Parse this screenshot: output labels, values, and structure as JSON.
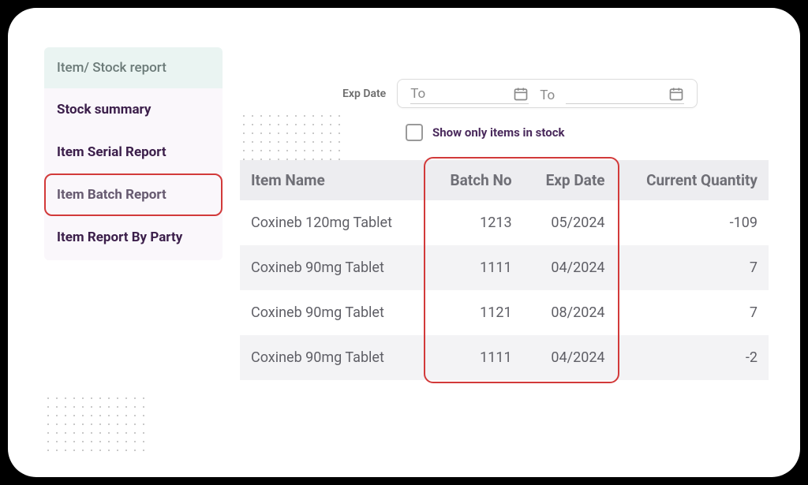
{
  "sidebar": {
    "header": "Item/ Stock report",
    "items": [
      {
        "label": "Stock summary",
        "active": false
      },
      {
        "label": "Item Serial Report",
        "active": false
      },
      {
        "label": "Item Batch Report",
        "active": true
      },
      {
        "label": "Item Report By Party",
        "active": false
      }
    ]
  },
  "filters": {
    "exp_date_label": "Exp Date",
    "date_from_placeholder": "To",
    "date_separator": "To",
    "date_to_placeholder": "",
    "checkbox_label": "Show only items in stock",
    "checkbox_checked": false
  },
  "table": {
    "columns": [
      "Item Name",
      "Batch No",
      "Exp Date",
      "Current Quantity"
    ],
    "column_align": [
      "left",
      "right",
      "right",
      "right"
    ],
    "rows": [
      [
        "Coxineb 120mg Tablet",
        "1213",
        "05/2024",
        "-109"
      ],
      [
        "Coxineb 90mg Tablet",
        "1111",
        "04/2024",
        "7"
      ],
      [
        "Coxineb 90mg Tablet",
        "1121",
        "08/2024",
        "7"
      ],
      [
        "Coxineb 90mg Tablet",
        "1111",
        "04/2024",
        "-2"
      ]
    ],
    "header_bg": "#ededf0",
    "row_bg_odd": "#ffffff",
    "row_bg_even": "#f3f3f5",
    "text_color": "#5f5f66",
    "header_text_color": "#6f6f76",
    "fontsize_header": 19,
    "fontsize_cell": 18
  },
  "highlights": {
    "sidebar_active_border": "#d23a3a",
    "table_columns_box": {
      "border_color": "#d23a3a",
      "radius": 12
    }
  },
  "colors": {
    "frame_bg": "#ffffff",
    "page_bg": "#000000",
    "sidebar_header_bg": "#eaf4f2",
    "sidebar_header_text": "#6b7a78",
    "sidebar_list_bg": "#faf7fb",
    "sidebar_item_text": "#3b1e4a",
    "checkbox_label_color": "#4a2a5c",
    "icon_color": "#8a8a8a"
  },
  "decorations": {
    "dot_grid": {
      "cols": 12,
      "rows": 7,
      "dot_color": "#b8b8b8"
    }
  }
}
